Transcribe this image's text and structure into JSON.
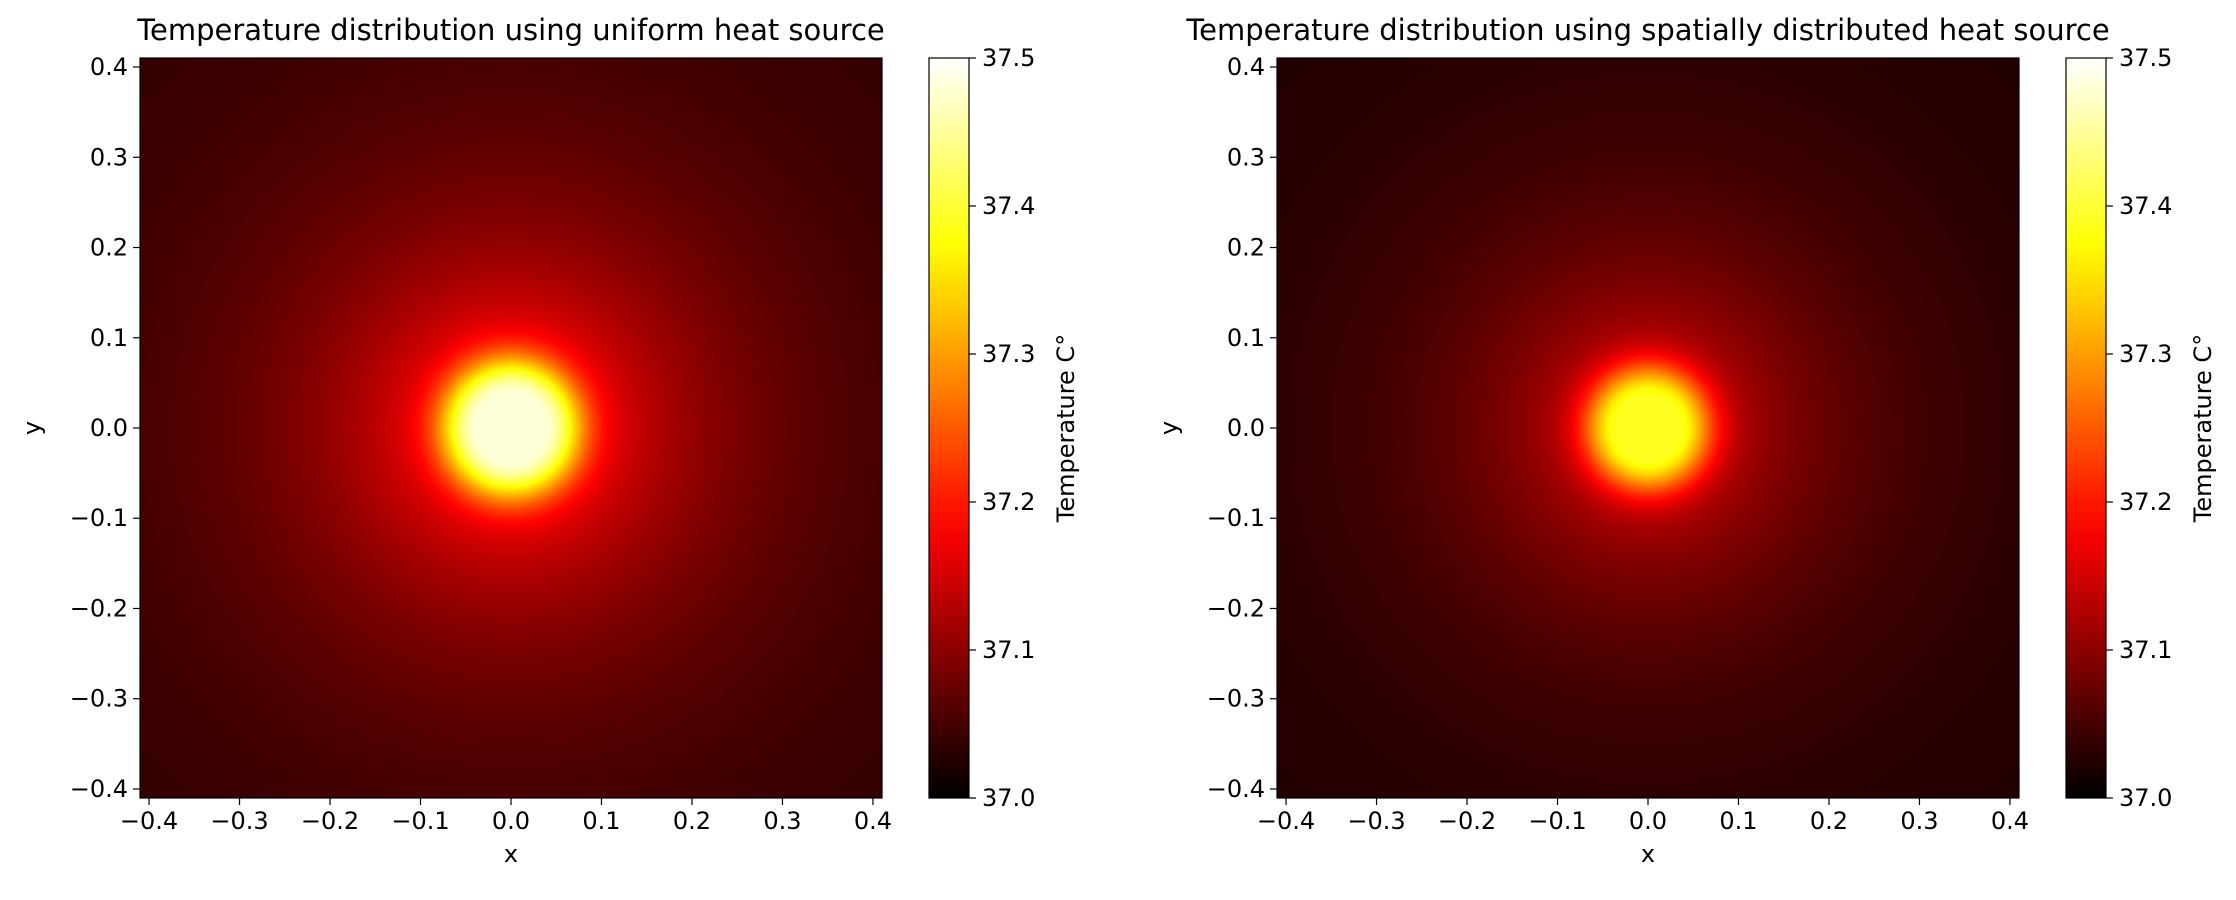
{
  "chart_data": [
    {
      "type": "heatmap",
      "title": "Temperature distribution using uniform heat source",
      "xlabel": "x",
      "ylabel": "y",
      "xlim": [
        -0.41,
        0.41
      ],
      "ylim": [
        -0.41,
        0.41
      ],
      "xticks": [
        -0.4,
        -0.3,
        -0.2,
        -0.1,
        0.0,
        0.1,
        0.2,
        0.3,
        0.4
      ],
      "yticks": [
        -0.4,
        -0.3,
        -0.2,
        -0.1,
        0.0,
        0.1,
        0.2,
        0.3,
        0.4
      ],
      "xtick_labels": [
        "−0.4",
        "−0.3",
        "−0.2",
        "−0.1",
        "0.0",
        "0.1",
        "0.2",
        "0.3",
        "0.4"
      ],
      "ytick_labels": [
        "−0.4",
        "−0.3",
        "−0.2",
        "−0.1",
        "0.0",
        "0.1",
        "0.2",
        "0.3",
        "0.4"
      ],
      "colormap": "hot",
      "colorbar": {
        "label": "Temperature C°",
        "range": [
          37.0,
          37.5
        ],
        "ticks": [
          37.0,
          37.1,
          37.2,
          37.3,
          37.4,
          37.5
        ],
        "tick_labels": [
          "37.0",
          "37.1",
          "37.2",
          "37.3",
          "37.4",
          "37.5"
        ]
      },
      "field": {
        "source_center": [
          0.0,
          0.0
        ],
        "source_radius": 0.04,
        "peak_temperature": 37.48,
        "edge_temperature": 37.03,
        "falloff_length": 0.075,
        "falloff_level": 0.45
      }
    },
    {
      "type": "heatmap",
      "title": "Temperature distribution using spatially distributed heat source",
      "xlabel": "x",
      "ylabel": "y",
      "xlim": [
        -0.41,
        0.41
      ],
      "ylim": [
        -0.41,
        0.41
      ],
      "xticks": [
        -0.4,
        -0.3,
        -0.2,
        -0.1,
        0.0,
        0.1,
        0.2,
        0.3,
        0.4
      ],
      "yticks": [
        -0.4,
        -0.3,
        -0.2,
        -0.1,
        0.0,
        0.1,
        0.2,
        0.3,
        0.4
      ],
      "xtick_labels": [
        "−0.4",
        "−0.3",
        "−0.2",
        "−0.1",
        "0.0",
        "0.1",
        "0.2",
        "0.3",
        "0.4"
      ],
      "ytick_labels": [
        "−0.4",
        "−0.3",
        "−0.2",
        "−0.1",
        "0.0",
        "0.1",
        "0.2",
        "0.3",
        "0.4"
      ],
      "colormap": "hot",
      "colorbar": {
        "label": "Temperature C°",
        "range": [
          37.0,
          37.5
        ],
        "ticks": [
          37.0,
          37.1,
          37.2,
          37.3,
          37.4,
          37.5
        ],
        "tick_labels": [
          "37.0",
          "37.1",
          "37.2",
          "37.3",
          "37.4",
          "37.5"
        ]
      },
      "field": {
        "source_center": [
          0.0,
          0.0
        ],
        "source_radius": 0.035,
        "peak_temperature": 37.39,
        "edge_temperature": 37.02,
        "falloff_length": 0.07,
        "falloff_level": 0.42
      }
    }
  ]
}
